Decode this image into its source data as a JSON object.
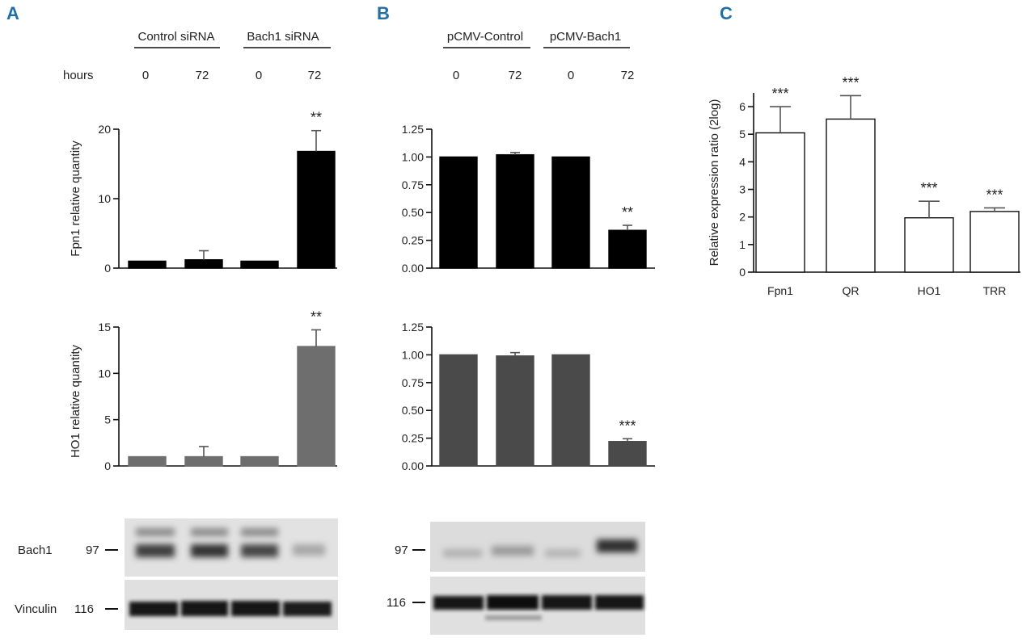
{
  "panels": {
    "a": {
      "letter": "A",
      "group_labels": [
        "Control siRNA",
        "Bach1 siRNA"
      ],
      "hours_label": "hours",
      "hours": [
        "0",
        "72",
        "0",
        "72"
      ],
      "blot": {
        "rows": [
          {
            "label": "Bach1",
            "marker": "97"
          },
          {
            "label": "Vinculin",
            "marker": "116"
          }
        ]
      }
    },
    "b": {
      "letter": "B",
      "group_labels": [
        "pCMV-Control",
        "pCMV-Bach1"
      ],
      "hours": [
        "0",
        "72",
        "0",
        "72"
      ],
      "blot": {
        "rows": [
          {
            "label": "",
            "marker": "97"
          },
          {
            "label": "",
            "marker": "116"
          }
        ]
      }
    },
    "c": {
      "letter": "C"
    }
  },
  "colors": {
    "fpn1_bar": "#000000",
    "ho1_bar_a": "#6e6e6e",
    "ho1_bar_b": "#4a4a4a",
    "open_bar_fill": "#ffffff",
    "panel_letter": "#1f6fa8"
  },
  "chart_data": [
    {
      "id": "a-top",
      "type": "bar",
      "categories": [
        "0",
        "72",
        "0",
        "72"
      ],
      "values": [
        1,
        1.2,
        1,
        16.8
      ],
      "errors": [
        0,
        1.3,
        0,
        3.0
      ],
      "significance": [
        "",
        "",
        "",
        "**"
      ],
      "ylabel": "Fpn1 relative quantity",
      "ylim": [
        0,
        20
      ],
      "yticks": [
        0,
        10,
        20
      ],
      "ytick_labels": [
        "0",
        "10",
        "20"
      ],
      "bar_color": "#000000"
    },
    {
      "id": "a-bottom",
      "type": "bar",
      "categories": [
        "0",
        "72",
        "0",
        "72"
      ],
      "values": [
        1,
        1,
        1,
        12.9
      ],
      "errors": [
        0,
        1.1,
        0,
        1.8
      ],
      "significance": [
        "",
        "",
        "",
        "**"
      ],
      "ylabel": "HO1 relative quantity",
      "ylim": [
        0,
        15
      ],
      "yticks": [
        0,
        5,
        10,
        15
      ],
      "ytick_labels": [
        "0",
        "5",
        "10",
        "15"
      ],
      "bar_color": "#6e6e6e"
    },
    {
      "id": "b-top",
      "type": "bar",
      "categories": [
        "0",
        "72",
        "0",
        "72"
      ],
      "values": [
        1.0,
        1.02,
        1.0,
        0.34
      ],
      "errors": [
        0,
        0.02,
        0,
        0.045
      ],
      "significance": [
        "",
        "",
        "",
        "**"
      ],
      "ylabel": "",
      "ylim": [
        0,
        1.25
      ],
      "yticks": [
        0,
        0.25,
        0.5,
        0.75,
        1.0,
        1.25
      ],
      "ytick_labels": [
        "0.00",
        "0.25",
        "0.50",
        "0.75",
        "1.00",
        "1.25"
      ],
      "bar_color": "#000000"
    },
    {
      "id": "b-bottom",
      "type": "bar",
      "categories": [
        "0",
        "72",
        "0",
        "72"
      ],
      "values": [
        1.0,
        0.99,
        1.0,
        0.22
      ],
      "errors": [
        0,
        0.03,
        0,
        0.025
      ],
      "significance": [
        "",
        "",
        "",
        "***"
      ],
      "ylabel": "",
      "ylim": [
        0,
        1.25
      ],
      "yticks": [
        0,
        0.25,
        0.5,
        0.75,
        1.0,
        1.25
      ],
      "ytick_labels": [
        "0.00",
        "0.25",
        "0.50",
        "0.75",
        "1.00",
        "1.25"
      ],
      "bar_color": "#4a4a4a"
    },
    {
      "id": "c",
      "type": "bar",
      "categories": [
        "Fpn1",
        "QR",
        "HO1",
        "TRR"
      ],
      "values": [
        5.05,
        5.55,
        1.97,
        2.2
      ],
      "errors": [
        0.95,
        0.85,
        0.6,
        0.13
      ],
      "significance": [
        "***",
        "***",
        "***",
        "***"
      ],
      "ylabel": "Relative expression ratio (2log)",
      "ylim": [
        0,
        6.5
      ],
      "yticks": [
        0,
        1,
        2,
        3,
        4,
        5,
        6
      ],
      "ytick_labels": [
        "0",
        "1",
        "2",
        "3",
        "4",
        "5",
        "6"
      ],
      "bar_color": "#ffffff"
    }
  ]
}
